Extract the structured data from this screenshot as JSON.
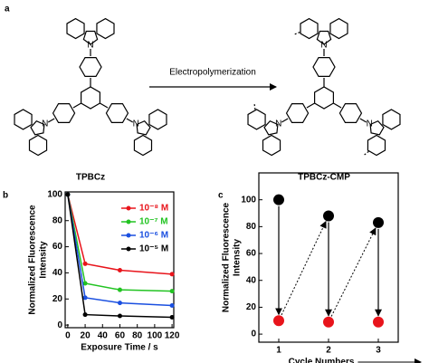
{
  "figure": {
    "labels": [
      "a",
      "b",
      "c"
    ],
    "reaction": {
      "reactant": "TPBCz",
      "product": "TPBCz-CMP",
      "arrow_label": "Electropolymerization"
    }
  },
  "chart_data": [
    {
      "type": "line",
      "x": [
        0,
        20,
        60,
        120
      ],
      "series": [
        {
          "name": "10⁻⁸ M",
          "color": "#e8141b",
          "values": [
            100,
            47,
            42,
            39
          ]
        },
        {
          "name": "10⁻⁷ M",
          "color": "#22c322",
          "values": [
            100,
            32,
            27,
            26
          ]
        },
        {
          "name": "10⁻⁶ M",
          "color": "#1a4fe0",
          "values": [
            100,
            21,
            17,
            15
          ]
        },
        {
          "name": "10⁻⁵ M",
          "color": "#000000",
          "values": [
            100,
            8,
            7,
            6
          ]
        }
      ],
      "xlim": [
        -3,
        122
      ],
      "ylim": [
        -2,
        102
      ],
      "xticks": [
        0,
        20,
        40,
        60,
        80,
        100,
        120
      ],
      "yticks": [
        0,
        20,
        40,
        60,
        80,
        100
      ],
      "xlabel": "Exposure Time / s",
      "ylabel": [
        "Normalized Fluorescence",
        "Intensity"
      ],
      "legend": "upper right"
    },
    {
      "type": "scatter",
      "x": [
        1,
        2,
        3
      ],
      "series": [
        {
          "color": "#000000",
          "values": [
            100,
            88,
            83
          ]
        },
        {
          "color": "#e8141b",
          "values": [
            10,
            9,
            9
          ]
        }
      ],
      "xlim": [
        0.6,
        3.4
      ],
      "ylim": [
        -6,
        120
      ],
      "xticks": [
        1,
        2,
        3
      ],
      "yticks": [
        0,
        20,
        40,
        60,
        80,
        100
      ],
      "xlabel": "Cycle Numbers",
      "ylabel": [
        "Normalized Fluorescence",
        "Intensity"
      ]
    }
  ]
}
